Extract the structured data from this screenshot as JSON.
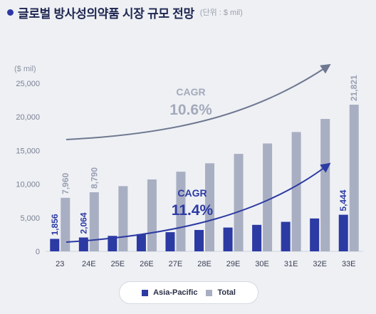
{
  "header": {
    "title": "글로벌 방사성의약품 시장 규모 전망",
    "unit_note": "(단위 : $ mil)"
  },
  "chart_data": {
    "type": "bar",
    "y_unit_label": "($ mil)",
    "categories": [
      "23",
      "24E",
      "25E",
      "26E",
      "27E",
      "28E",
      "29E",
      "30E",
      "31E",
      "32E",
      "33E"
    ],
    "series": [
      {
        "name": "Asia-Pacific",
        "color": "#2c3aa3",
        "values": [
          1856,
          2064,
          2300,
          2560,
          2850,
          3180,
          3540,
          3940,
          4390,
          4890,
          5444
        ],
        "labeled": {
          "0": "1,856",
          "1": "2,064",
          "10": "5,444"
        }
      },
      {
        "name": "Total",
        "color": "#a9afc2",
        "values": [
          7960,
          8790,
          9700,
          10700,
          11850,
          13100,
          14500,
          16050,
          17750,
          19700,
          21821
        ],
        "labeled": {
          "0": "7,960",
          "1": "8,790",
          "10": "21,821"
        }
      }
    ],
    "ylim": [
      0,
      25000
    ],
    "yticks": [
      0,
      5000,
      10000,
      15000,
      20000,
      25000
    ],
    "ytick_labels": [
      "0",
      "5,000",
      "10,000",
      "15,000",
      "20,000",
      "25,000"
    ],
    "grid": false,
    "legend_position": "bottom-center",
    "annotations": [
      {
        "kind": "growth-arrow",
        "target": "Total",
        "label": "CAGR",
        "value": "10.6%",
        "color": "#6f7891"
      },
      {
        "kind": "growth-arrow",
        "target": "Asia-Pacific",
        "label": "CAGR",
        "value": "11.4%",
        "color": "#2c3aa3"
      }
    ]
  }
}
